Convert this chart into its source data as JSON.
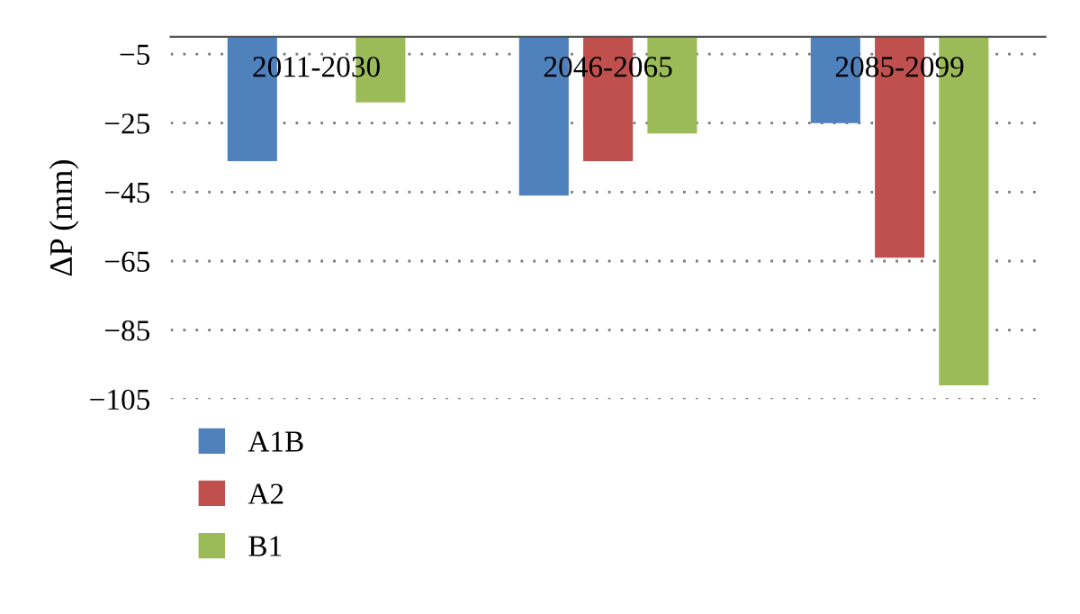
{
  "chart_data": {
    "type": "bar",
    "ylabel": "ΔP (mm)",
    "categories": [
      "2011-2030",
      "2046-2065",
      "2085-2099"
    ],
    "series": [
      {
        "name": "A1B",
        "color": "#4f81bd",
        "values": [
          -36,
          -46,
          -25
        ]
      },
      {
        "name": "A2",
        "color": "#c0504d",
        "values": [
          null,
          -36,
          -64
        ]
      },
      {
        "name": "B1",
        "color": "#9bbb59",
        "values": [
          -19,
          -28,
          -101
        ]
      }
    ],
    "ylim": [
      -105,
      0
    ],
    "yticks": [
      -5,
      -25,
      -45,
      -65,
      -85,
      -105
    ],
    "grid": "y",
    "legend": "bottom left"
  }
}
